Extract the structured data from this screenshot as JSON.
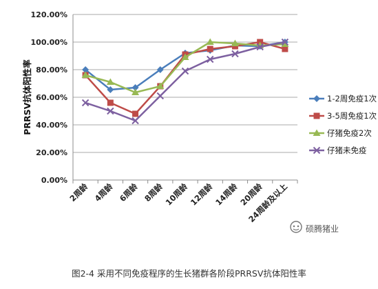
{
  "chart_data": {
    "type": "line",
    "title": "",
    "xlabel": "",
    "ylabel": "PRRSV抗体阳性率",
    "ylim": [
      0,
      1.2
    ],
    "yticks": [
      "0.00%",
      "20.00%",
      "40.00%",
      "60.00%",
      "80.00%",
      "100.00%",
      "120.00%"
    ],
    "ytick_values": [
      0,
      0.2,
      0.4,
      0.6,
      0.8,
      1.0,
      1.2
    ],
    "grid": true,
    "legend_position": "right",
    "categories": [
      "2周龄",
      "4周龄",
      "6周龄",
      "8周龄",
      "10周龄",
      "12周龄",
      "14周龄",
      "20周龄",
      "24周龄及以上"
    ],
    "series": [
      {
        "name": "1-2周免疫1次",
        "color": "#4a7ebb",
        "marker": "diamond",
        "values": [
          0.8,
          0.655,
          0.67,
          0.8,
          0.92,
          0.94,
          0.975,
          0.97,
          1.0
        ]
      },
      {
        "name": "3-5周免疫1次",
        "color": "#be4b48",
        "marker": "square",
        "values": [
          0.76,
          0.56,
          0.48,
          0.68,
          0.91,
          0.95,
          0.97,
          1.0,
          0.95
        ]
      },
      {
        "name": "仔猪免疫2次",
        "color": "#98b954",
        "marker": "triangle",
        "values": [
          0.76,
          0.71,
          0.635,
          0.68,
          0.89,
          1.0,
          0.99,
          0.975,
          0.985
        ]
      },
      {
        "name": "仔猪未免疫",
        "color": "#7d60a0",
        "marker": "x",
        "values": [
          0.56,
          0.5,
          0.43,
          0.61,
          0.79,
          0.875,
          0.915,
          0.965,
          1.0
        ]
      }
    ]
  },
  "caption": "图2-4 采用不同免疫程序的生长猪群各阶段PRRSV抗体阳性率",
  "watermark": "硕腾猪业"
}
